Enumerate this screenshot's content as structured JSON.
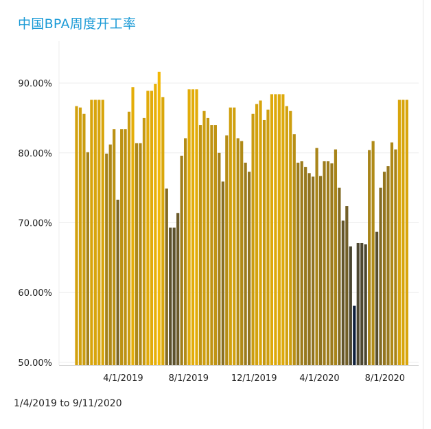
{
  "title": "中国BPA周度开工率",
  "date_range": "1/4/2019 to 9/11/2020",
  "chart_data": {
    "type": "bar",
    "title": "中国BPA周度开工率",
    "xlabel": "",
    "ylabel": "",
    "ylim": [
      49.6,
      96
    ],
    "grid": true,
    "legend": "none",
    "y_ticks": [
      {
        "value": 50,
        "label": "50.00%"
      },
      {
        "value": 60,
        "label": "60.00%"
      },
      {
        "value": 70,
        "label": "70.00%"
      },
      {
        "value": 80,
        "label": "80.00%"
      },
      {
        "value": 90,
        "label": "90.00%"
      }
    ],
    "x_ticks": [
      {
        "date": "2019-04-01",
        "label": "4/1/2019"
      },
      {
        "date": "2019-08-01",
        "label": "8/1/2019"
      },
      {
        "date": "2019-12-01",
        "label": "12/1/2019"
      },
      {
        "date": "2020-04-01",
        "label": "4/1/2020"
      },
      {
        "date": "2020-08-01",
        "label": "8/1/2020"
      }
    ],
    "color_scale": {
      "low": "#0d1f3c",
      "mid": "#6b5a2a",
      "high": "#f2b705",
      "min": 58,
      "max": 91.5
    },
    "weeks": [
      "2019-01-04",
      "2019-01-11",
      "2019-01-18",
      "2019-01-25",
      "2019-02-01",
      "2019-02-08",
      "2019-02-15",
      "2019-02-22",
      "2019-03-01",
      "2019-03-08",
      "2019-03-15",
      "2019-03-22",
      "2019-03-29",
      "2019-04-05",
      "2019-04-12",
      "2019-04-19",
      "2019-04-26",
      "2019-05-03",
      "2019-05-10",
      "2019-05-17",
      "2019-05-24",
      "2019-05-31",
      "2019-06-07",
      "2019-06-14",
      "2019-06-21",
      "2019-06-28",
      "2019-07-05",
      "2019-07-12",
      "2019-07-19",
      "2019-07-26",
      "2019-08-02",
      "2019-08-09",
      "2019-08-16",
      "2019-08-23",
      "2019-08-30",
      "2019-09-06",
      "2019-09-13",
      "2019-09-20",
      "2019-09-27",
      "2019-10-04",
      "2019-10-11",
      "2019-10-18",
      "2019-10-25",
      "2019-11-01",
      "2019-11-08",
      "2019-11-15",
      "2019-11-22",
      "2019-11-29",
      "2019-12-06",
      "2019-12-13",
      "2019-12-20",
      "2019-12-27",
      "2020-01-03",
      "2020-01-10",
      "2020-01-17",
      "2020-01-24",
      "2020-01-31",
      "2020-02-07",
      "2020-02-14",
      "2020-02-21",
      "2020-02-28",
      "2020-03-06",
      "2020-03-13",
      "2020-03-20",
      "2020-03-27",
      "2020-04-03",
      "2020-04-10",
      "2020-04-17",
      "2020-04-24",
      "2020-05-01",
      "2020-05-08",
      "2020-05-15",
      "2020-05-22",
      "2020-05-29",
      "2020-06-05",
      "2020-06-12",
      "2020-06-19",
      "2020-06-26",
      "2020-07-03",
      "2020-07-10",
      "2020-07-17",
      "2020-07-24",
      "2020-07-31",
      "2020-08-07",
      "2020-08-14",
      "2020-08-21",
      "2020-08-28",
      "2020-09-04",
      "2020-09-11"
    ],
    "values": [
      86.7,
      86.5,
      85.6,
      80.1,
      87.6,
      87.6,
      87.6,
      87.6,
      79.9,
      81.2,
      83.4,
      73.3,
      83.4,
      83.4,
      85.9,
      89.4,
      81.4,
      81.4,
      85.0,
      88.9,
      88.9,
      89.9,
      91.6,
      88.0,
      74.9,
      69.3,
      69.3,
      71.4,
      79.6,
      82.1,
      89.1,
      89.1,
      89.1,
      84.0,
      86.0,
      85.0,
      84.0,
      84.0,
      80.0,
      75.9,
      82.5,
      86.5,
      86.5,
      82.1,
      81.7,
      78.6,
      77.3,
      85.6,
      87.0,
      87.5,
      84.7,
      86.2,
      88.4,
      88.4,
      88.4,
      88.4,
      86.7,
      86.0,
      82.7,
      78.6,
      78.8,
      78.0,
      77.1,
      76.6,
      80.7,
      76.7,
      78.8,
      78.8,
      78.5,
      80.5,
      75.0,
      70.3,
      72.4,
      66.6,
      58.1,
      67.1,
      67.1,
      66.9,
      80.4,
      81.7,
      68.7,
      75.0,
      77.3,
      78.1,
      81.5,
      80.5,
      87.6,
      87.6,
      87.6
    ]
  }
}
